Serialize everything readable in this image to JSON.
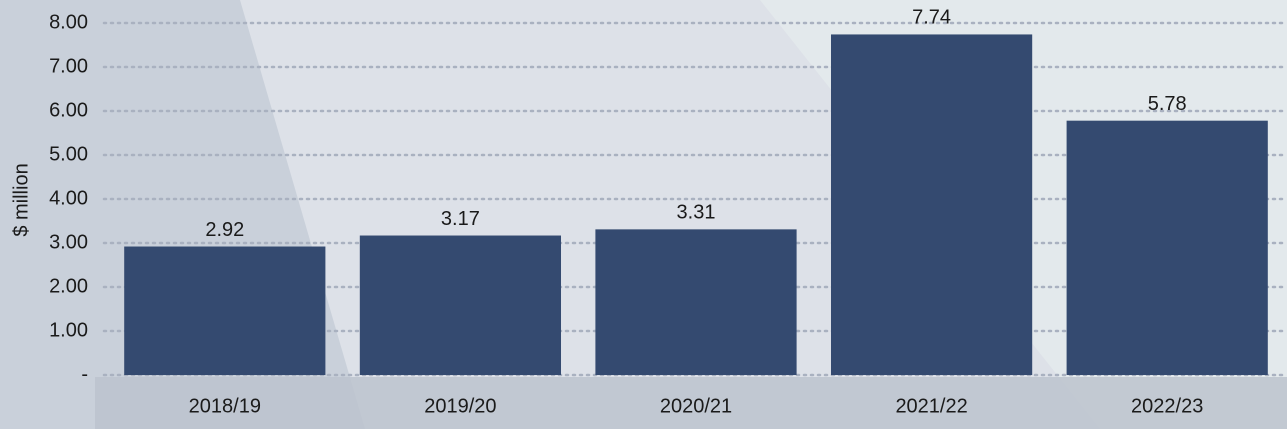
{
  "chart_data": {
    "type": "bar",
    "y_label": "$ million",
    "categories": [
      "2018/19",
      "2019/20",
      "2020/21",
      "2021/22",
      "2022/23"
    ],
    "values": [
      2.92,
      3.17,
      3.31,
      7.74,
      5.78
    ],
    "color": "#344a70",
    "ylim": [
      0,
      8
    ],
    "yticks": [
      {
        "value": 0,
        "label": "-"
      },
      {
        "value": 1,
        "label": "1.00"
      },
      {
        "value": 2,
        "label": "2.00"
      },
      {
        "value": 3,
        "label": "3.00"
      },
      {
        "value": 4,
        "label": "4.00"
      },
      {
        "value": 5,
        "label": "5.00"
      },
      {
        "value": 6,
        "label": "6.00"
      },
      {
        "value": 7,
        "label": "7.00"
      },
      {
        "value": 8,
        "label": "8.00"
      }
    ],
    "grid": true
  }
}
